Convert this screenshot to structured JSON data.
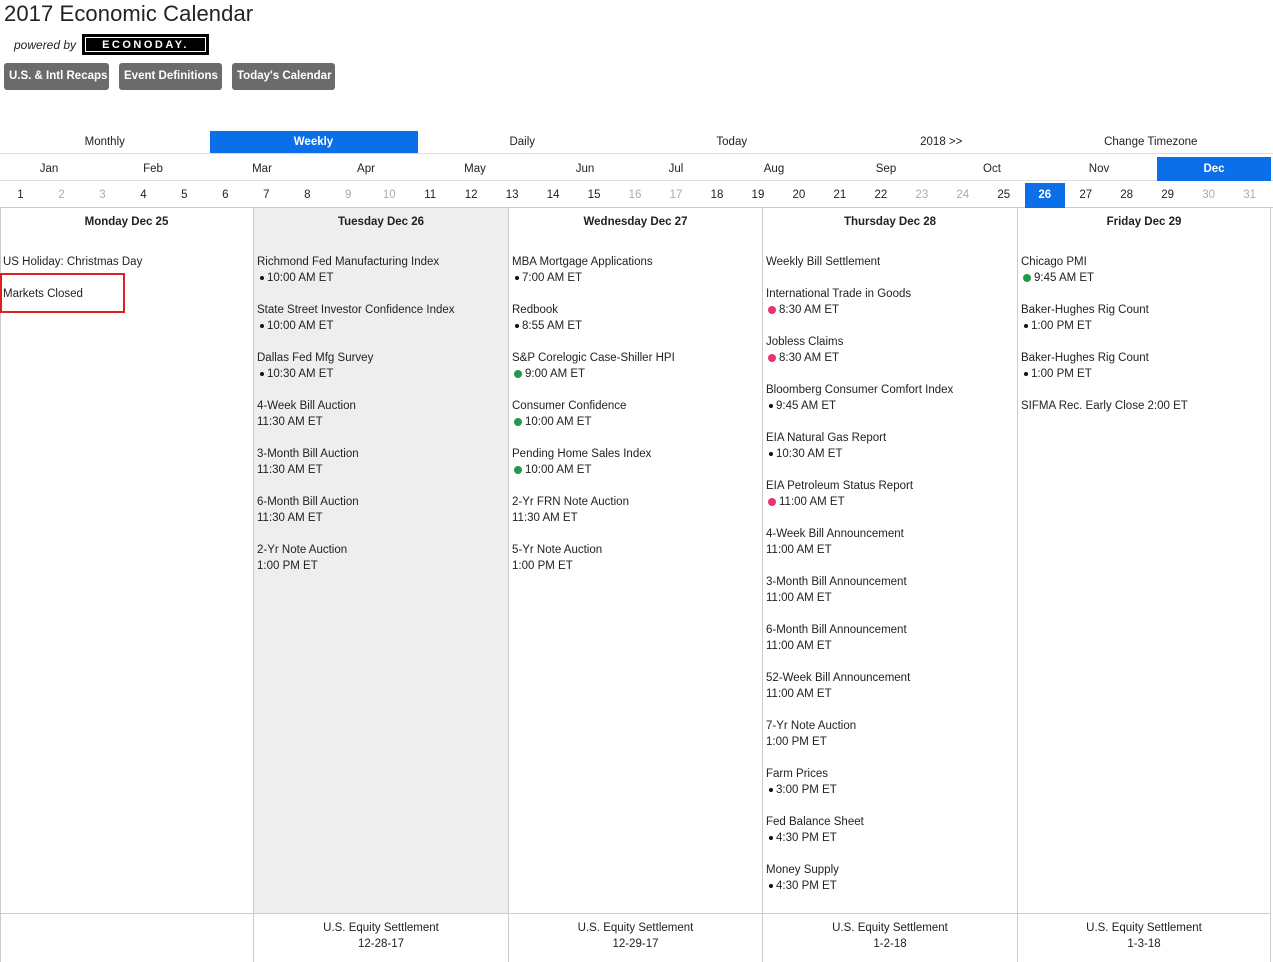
{
  "header": {
    "title": "2017 Economic Calendar",
    "powered_by": "powered by",
    "logo_text": "ECONODAY."
  },
  "buttons": [
    "U.S. & Intl Recaps",
    "Event Definitions",
    "Today's Calendar"
  ],
  "views": [
    {
      "label": "Monthly",
      "active": false
    },
    {
      "label": "Weekly",
      "active": true
    },
    {
      "label": "Daily",
      "active": false
    },
    {
      "label": "Today",
      "active": false
    },
    {
      "label": "2018 >>",
      "active": false
    },
    {
      "label": "Change Timezone",
      "active": false
    }
  ],
  "months": [
    "Jan",
    "Feb",
    "Mar",
    "Apr",
    "May",
    "Jun",
    "Jul",
    "Aug",
    "Sep",
    "Oct",
    "Nov",
    "Dec"
  ],
  "active_month": "Dec",
  "days": [
    1,
    2,
    3,
    4,
    5,
    6,
    7,
    8,
    9,
    10,
    11,
    12,
    13,
    14,
    15,
    16,
    17,
    18,
    19,
    20,
    21,
    22,
    23,
    24,
    25,
    26,
    27,
    28,
    29,
    30,
    31
  ],
  "weekend_days": [
    2,
    3,
    9,
    10,
    16,
    17,
    23,
    24,
    30,
    31
  ],
  "active_day": 26,
  "columns": [
    {
      "header": "Monday Dec 25",
      "shaded": false,
      "events": [
        {
          "name": "US Holiday: Christmas Day"
        },
        {
          "name": "Markets Closed",
          "highlight": true
        }
      ],
      "footer": []
    },
    {
      "header": "Tuesday Dec 26",
      "shaded": true,
      "events": [
        {
          "name": "Richmond Fed Manufacturing Index",
          "time": "10:00 AM ET",
          "dot": "black"
        },
        {
          "name": "State Street Investor Confidence Index",
          "time": "10:00 AM ET",
          "dot": "black"
        },
        {
          "name": "Dallas Fed Mfg Survey",
          "time": "10:30 AM ET",
          "dot": "black"
        },
        {
          "name": "4-Week Bill Auction",
          "time": "11:30 AM ET"
        },
        {
          "name": "3-Month Bill Auction",
          "time": "11:30 AM ET"
        },
        {
          "name": "6-Month Bill Auction",
          "time": "11:30 AM ET"
        },
        {
          "name": "2-Yr Note Auction",
          "time": "1:00 PM ET"
        }
      ],
      "footer": [
        "U.S. Equity Settlement",
        "12-28-17"
      ]
    },
    {
      "header": "Wednesday Dec 27",
      "shaded": false,
      "events": [
        {
          "name": "MBA Mortgage Applications",
          "time": "7:00 AM ET",
          "dot": "black"
        },
        {
          "name": "Redbook",
          "time": "8:55 AM ET",
          "dot": "black"
        },
        {
          "name": "S&P Corelogic Case-Shiller HPI",
          "time": "9:00 AM ET",
          "dot": "green"
        },
        {
          "name": "Consumer Confidence",
          "time": "10:00 AM ET",
          "dot": "green"
        },
        {
          "name": "Pending Home Sales Index",
          "time": "10:00 AM ET",
          "dot": "green"
        },
        {
          "name": "2-Yr FRN Note Auction",
          "time": "11:30 AM ET"
        },
        {
          "name": "5-Yr Note Auction",
          "time": "1:00 PM ET"
        }
      ],
      "footer": [
        "U.S. Equity Settlement",
        "12-29-17"
      ]
    },
    {
      "header": "Thursday Dec 28",
      "shaded": false,
      "events": [
        {
          "name": "Weekly Bill Settlement"
        },
        {
          "name": "International Trade in Goods",
          "time": "8:30 AM ET",
          "dot": "red"
        },
        {
          "name": "Jobless Claims",
          "time": "8:30 AM ET",
          "dot": "red"
        },
        {
          "name": "Bloomberg Consumer Comfort Index",
          "time": "9:45 AM ET",
          "dot": "black"
        },
        {
          "name": "EIA Natural Gas Report",
          "time": "10:30 AM ET",
          "dot": "black"
        },
        {
          "name": "EIA Petroleum Status Report",
          "time": "11:00 AM ET",
          "dot": "red"
        },
        {
          "name": "4-Week Bill Announcement",
          "time": "11:00 AM ET"
        },
        {
          "name": "3-Month Bill Announcement",
          "time": "11:00 AM ET"
        },
        {
          "name": "6-Month Bill Announcement",
          "time": "11:00 AM ET"
        },
        {
          "name": "52-Week Bill Announcement",
          "time": "11:00 AM ET"
        },
        {
          "name": "7-Yr Note Auction",
          "time": "1:00 PM ET"
        },
        {
          "name": "Farm Prices",
          "time": "3:00 PM ET",
          "dot": "black"
        },
        {
          "name": "Fed Balance Sheet",
          "time": "4:30 PM ET",
          "dot": "black"
        },
        {
          "name": "Money Supply",
          "time": "4:30 PM ET",
          "dot": "black"
        }
      ],
      "footer": [
        "U.S. Equity Settlement",
        "1-2-18"
      ]
    },
    {
      "header": "Friday Dec 29",
      "shaded": false,
      "events": [
        {
          "name": "Chicago PMI",
          "time": "9:45 AM ET",
          "dot": "green"
        },
        {
          "name": "Baker-Hughes Rig Count",
          "time": "1:00 PM ET",
          "dot": "black"
        },
        {
          "name": "Baker-Hughes Rig Count",
          "time": "1:00 PM ET",
          "dot": "black"
        },
        {
          "name": "SIFMA Rec. Early Close 2:00 ET"
        }
      ],
      "footer": [
        "U.S. Equity Settlement",
        "1-3-18"
      ]
    }
  ]
}
